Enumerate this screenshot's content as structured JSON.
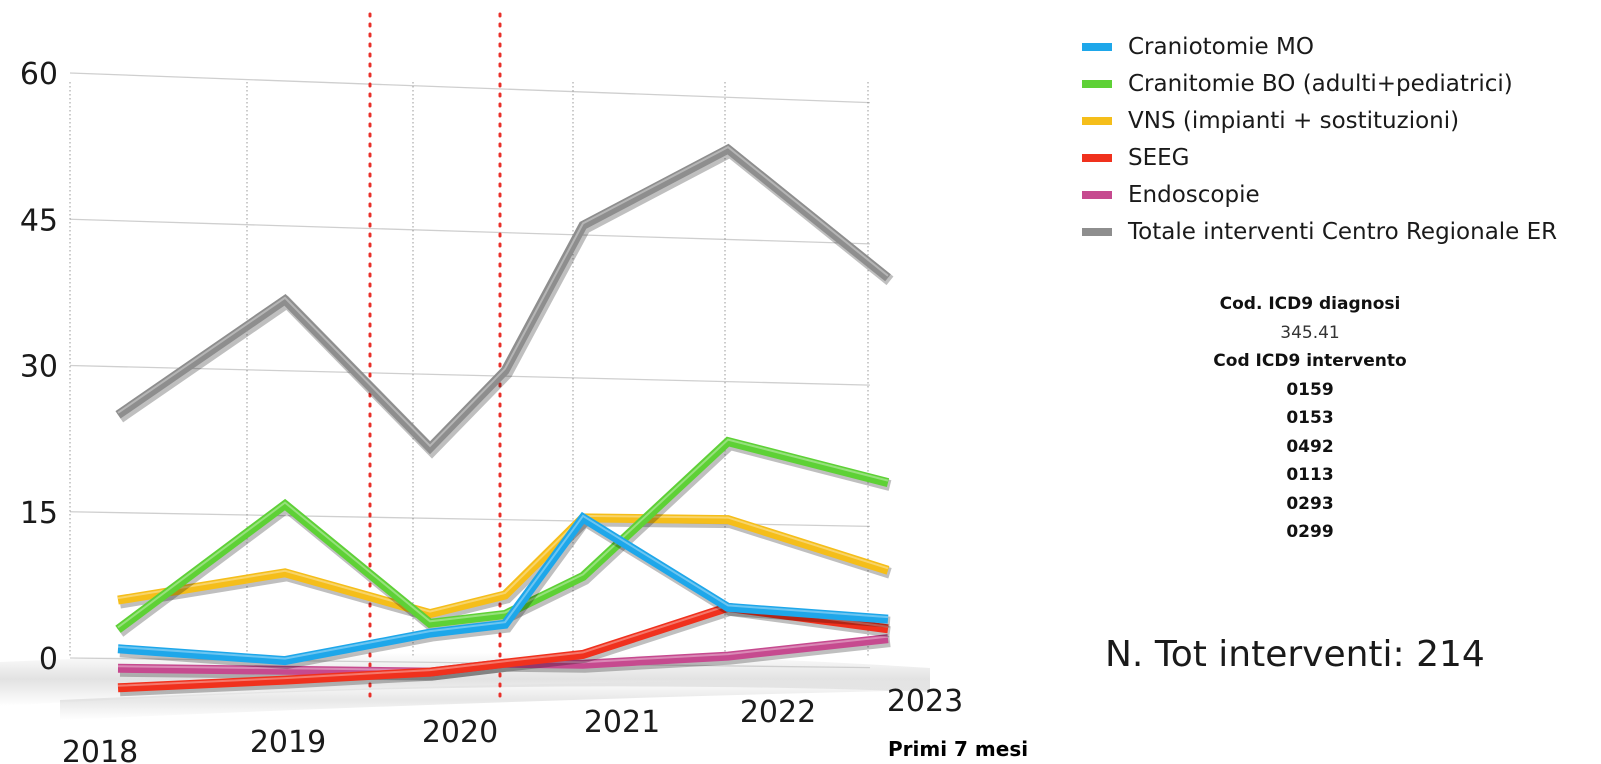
{
  "chart_data": {
    "type": "line",
    "title": "",
    "xlabel": "",
    "ylabel": "",
    "categories": [
      "2018",
      "2019",
      "2020",
      "2020",
      "2021",
      "2022",
      "2023"
    ],
    "category_notes": [
      "",
      "",
      "",
      "",
      "",
      "",
      "Primi 7 mesi"
    ],
    "ylim": [
      0,
      60
    ],
    "y_ticks": [
      "0",
      "15",
      "30",
      "45",
      "60"
    ],
    "grid": true,
    "legend_position": "top-right",
    "markers": [
      {
        "type": "vertical-dotted-line",
        "color": "#e8302a"
      },
      {
        "type": "vertical-dotted-line",
        "color": "#e8302a"
      }
    ],
    "series": [
      {
        "name": "Craniotomie MO",
        "color": "#1ea7ea",
        "values": [
          1,
          0,
          3,
          4,
          15,
          6,
          5
        ]
      },
      {
        "name": "Cranitomie BO (adulti+pediatrici)",
        "color": "#5ed136",
        "values": [
          3,
          16,
          4,
          5,
          9,
          23,
          19
        ]
      },
      {
        "name": "VNS (impianti + sostituzioni)",
        "color": "#f5be1a",
        "values": [
          6,
          9,
          5,
          7,
          15,
          15,
          10
        ]
      },
      {
        "name": "SEEG",
        "color": "#f0311d",
        "values": [
          -3,
          -2,
          -1,
          0,
          1,
          6,
          4
        ]
      },
      {
        "name": "Endoscopie",
        "color": "#c64a8f",
        "values": [
          -1,
          -1,
          -1,
          0,
          0,
          1,
          3
        ]
      },
      {
        "name": "Totale interventi Centro Regionale ER",
        "color": "#8e8e8e",
        "values": [
          25,
          37,
          22,
          30,
          45,
          53,
          40
        ]
      }
    ]
  },
  "info": {
    "diagnosis_heading": "Cod. ICD9 diagnosi",
    "diagnosis_code": "345.41",
    "procedure_heading": "Cod ICD9 intervento",
    "procedure_codes": [
      "0159",
      "0153",
      "0492",
      "0113",
      "0293",
      "0299"
    ]
  },
  "summary": {
    "total_label": "N. Tot interventi: 214"
  }
}
